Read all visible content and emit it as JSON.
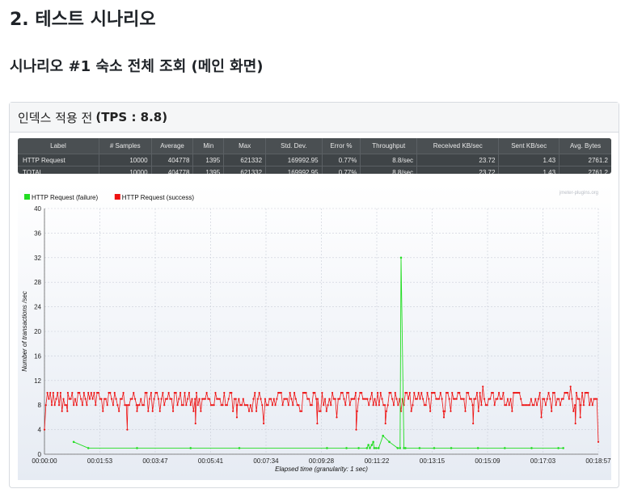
{
  "page": {
    "section_title": "2. 테스트 시나리오",
    "scenario_title": "시나리오 #1 숙소 전체 조회 (메인 화면)"
  },
  "card": {
    "title_prefix": "인덱스 적용 전",
    "title_tps": "(TPS : 8.8)"
  },
  "stats_table": {
    "headers": [
      "Label",
      "# Samples",
      "Average",
      "Min",
      "Max",
      "Std. Dev.",
      "Error %",
      "Throughput",
      "Received KB/sec",
      "Sent KB/sec",
      "Avg. Bytes"
    ],
    "rows": [
      [
        "HTTP Request",
        "10000",
        "404778",
        "1395",
        "621332",
        "169992.95",
        "0.77%",
        "8.8/sec",
        "23.72",
        "1.43",
        "2761.2"
      ],
      [
        "TOTAL",
        "10000",
        "404778",
        "1395",
        "621332",
        "169992.95",
        "0.77%",
        "8.8/sec",
        "23.72",
        "1.43",
        "2761.2"
      ]
    ]
  },
  "chart_data": {
    "type": "line",
    "watermark": "jmeter-plugins.org",
    "xlabel": "Elapsed time (granularity: 1 sec)",
    "ylabel": "Number of transactions /sec",
    "ylim": [
      0,
      40
    ],
    "yticks": [
      0,
      4,
      8,
      12,
      16,
      20,
      24,
      28,
      32,
      36,
      40
    ],
    "xlim": [
      "00:00:00",
      "00:18:57"
    ],
    "xticks": [
      "00:00:00",
      "00:01:53",
      "00:03:47",
      "00:05:41",
      "00:07:34",
      "00:09:28",
      "00:11:22",
      "00:13:15",
      "00:15:09",
      "00:17:03",
      "00:18:57"
    ],
    "grid": true,
    "legend_position": "top-left",
    "series": [
      {
        "name": "HTTP Request (failure)",
        "color": "#22dd22",
        "points": [
          [
            60,
            2
          ],
          [
            90,
            1
          ],
          [
            190,
            1
          ],
          [
            300,
            1
          ],
          [
            400,
            1
          ],
          [
            580,
            1
          ],
          [
            620,
            1
          ],
          [
            645,
            1
          ],
          [
            662,
            1
          ],
          [
            665,
            1.5
          ],
          [
            668,
            1
          ],
          [
            672,
            1.5
          ],
          [
            675,
            2
          ],
          [
            677,
            1
          ],
          [
            681,
            1
          ],
          [
            686,
            1
          ],
          [
            695,
            3
          ],
          [
            708,
            2
          ],
          [
            725,
            1
          ],
          [
            730,
            1
          ],
          [
            732,
            32
          ],
          [
            738,
            1
          ],
          [
            741,
            1
          ],
          [
            770,
            1
          ],
          [
            800,
            1
          ],
          [
            835,
            1
          ],
          [
            890,
            1
          ],
          [
            945,
            1
          ],
          [
            1000,
            1
          ],
          [
            1055,
            1
          ],
          [
            1065,
            1
          ]
        ]
      },
      {
        "name": "HTTP Request (success)",
        "color": "#ee1111",
        "baseline": 9,
        "range": [
          6,
          10
        ],
        "dips": [
          [
            0,
            4
          ],
          [
            47,
            7
          ],
          [
            170,
            4
          ],
          [
            190,
            7
          ],
          [
            310,
            5
          ],
          [
            395,
            6
          ],
          [
            450,
            5
          ],
          [
            560,
            5
          ],
          [
            600,
            6
          ],
          [
            640,
            4
          ],
          [
            700,
            5
          ],
          [
            820,
            6
          ],
          [
            880,
            5
          ],
          [
            960,
            7
          ],
          [
            1020,
            6
          ],
          [
            1090,
            5
          ],
          [
            1100,
            6
          ],
          [
            1137,
            2
          ]
        ],
        "peaks": [
          [
            230,
            11
          ],
          [
            280,
            11
          ],
          [
            520,
            11
          ],
          [
            610,
            11
          ],
          [
            700,
            11
          ],
          [
            900,
            11
          ],
          [
            1000,
            11
          ],
          [
            1080,
            11
          ]
        ]
      }
    ]
  }
}
